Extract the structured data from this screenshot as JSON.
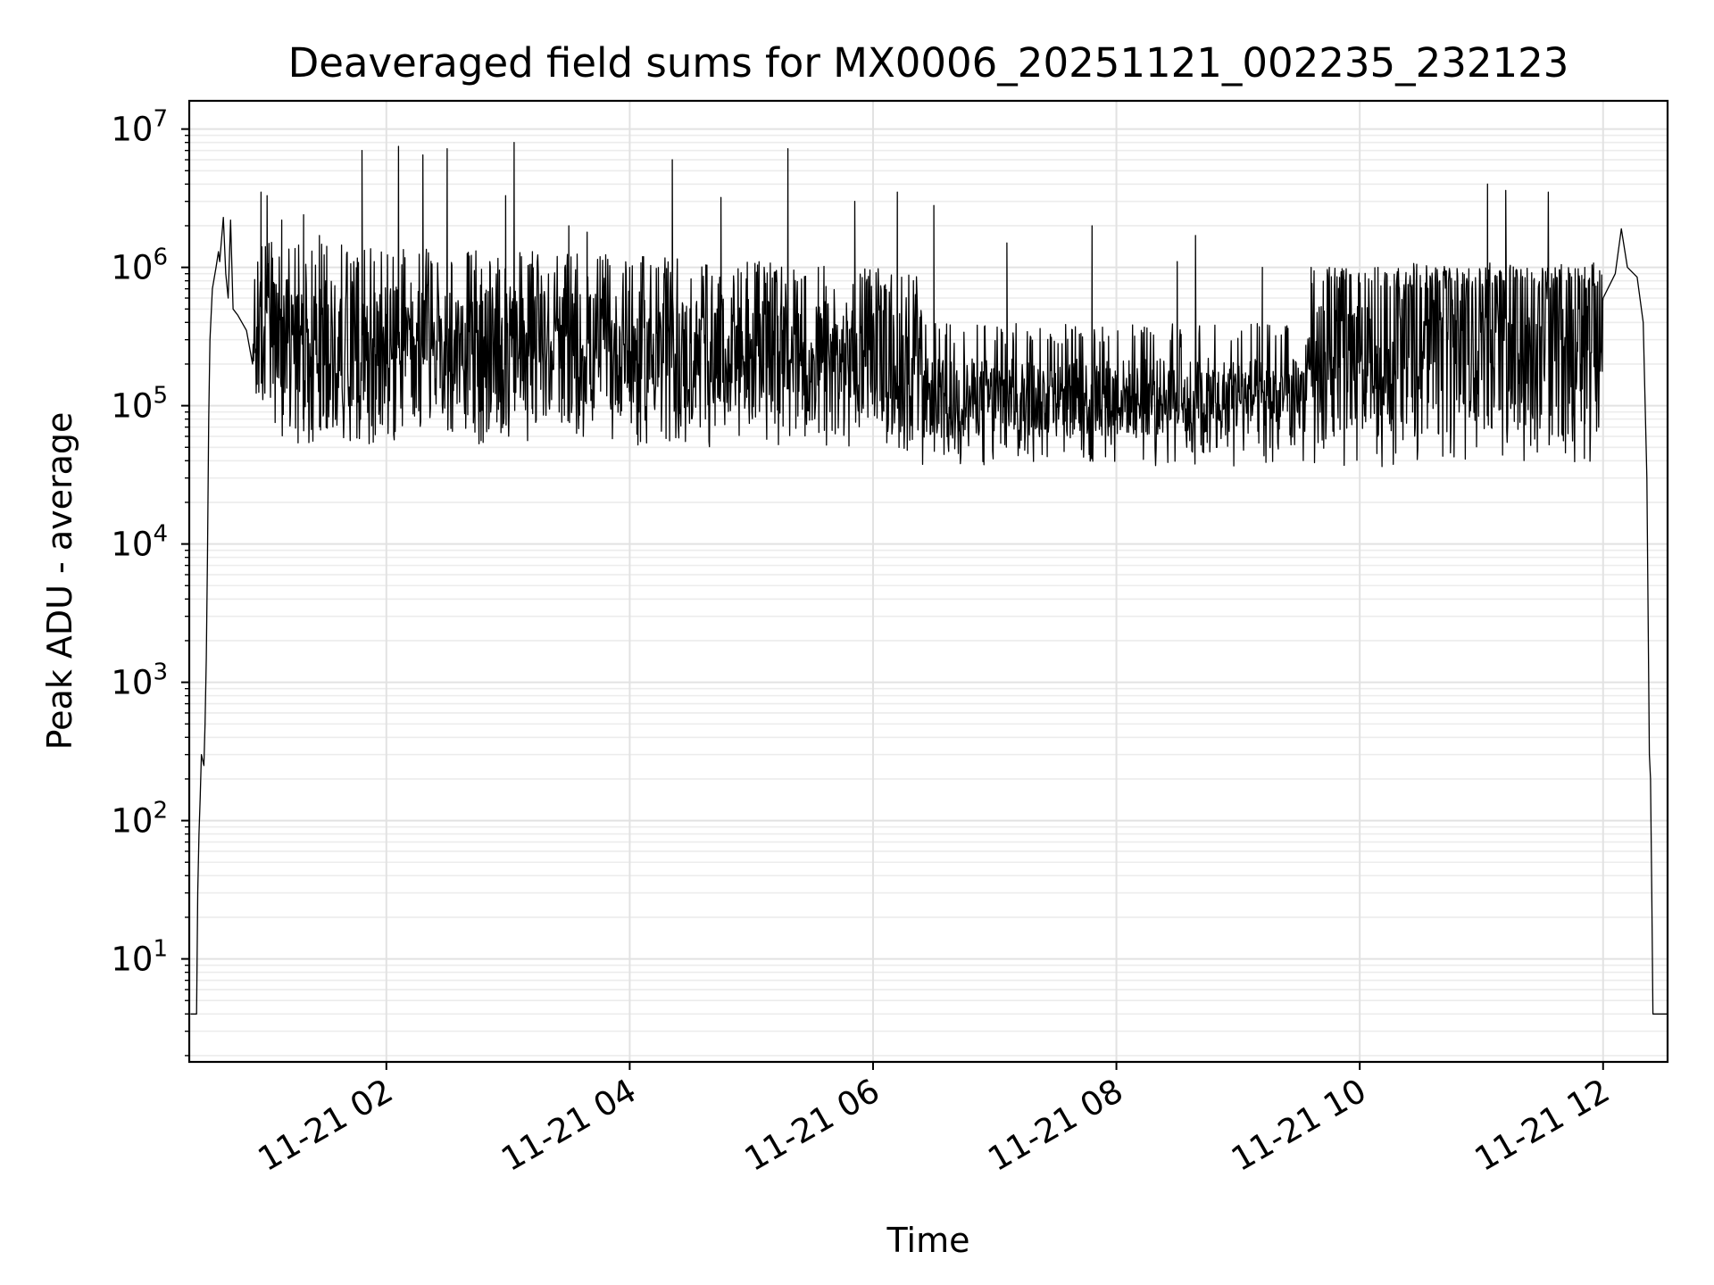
{
  "chart_data": {
    "type": "line",
    "title": "Deaveraged field sums for MX0006_20251121_002235_232123",
    "xlabel": "Time",
    "ylabel": "Peak ADU - average",
    "y_scale": "log",
    "ylim": [
      1.8,
      16000000
    ],
    "x_unit": "hours since 11-21 00:00",
    "xlim": [
      0.38,
      12.53
    ],
    "x_ticks": [
      {
        "value": 2,
        "label": "11-21 02"
      },
      {
        "value": 4,
        "label": "11-21 04"
      },
      {
        "value": 6,
        "label": "11-21 06"
      },
      {
        "value": 8,
        "label": "11-21 08"
      },
      {
        "value": 10,
        "label": "11-21 10"
      },
      {
        "value": 12,
        "label": "11-21 12"
      }
    ],
    "y_ticks": [
      {
        "value": 10,
        "base": "10",
        "exp": "1"
      },
      {
        "value": 100,
        "base": "10",
        "exp": "2"
      },
      {
        "value": 1000,
        "base": "10",
        "exp": "3"
      },
      {
        "value": 10000,
        "base": "10",
        "exp": "4"
      },
      {
        "value": 100000,
        "base": "10",
        "exp": "5"
      },
      {
        "value": 1000000,
        "base": "10",
        "exp": "6"
      },
      {
        "value": 10000000,
        "base": "10",
        "exp": "7"
      }
    ],
    "grid": true,
    "series": [
      {
        "name": "deaveraged field sum",
        "color": "#000000",
        "envelope_note": "dense noisy signal; values approximated",
        "points": [
          [
            0.39,
            4
          ],
          [
            0.42,
            4
          ],
          [
            0.44,
            4
          ],
          [
            0.45,
            30
          ],
          [
            0.46,
            80
          ],
          [
            0.47,
            150
          ],
          [
            0.48,
            300
          ],
          [
            0.5,
            250
          ],
          [
            0.51,
            500
          ],
          [
            0.52,
            1500
          ],
          [
            0.53,
            8000
          ],
          [
            0.54,
            80000
          ],
          [
            0.55,
            300000
          ],
          [
            0.57,
            700000
          ],
          [
            0.6,
            1000000
          ],
          [
            0.62,
            1300000
          ],
          [
            0.63,
            1100000
          ],
          [
            0.66,
            2300000
          ],
          [
            0.68,
            900000
          ],
          [
            0.7,
            600000
          ],
          [
            0.72,
            2200000
          ],
          [
            0.74,
            500000
          ],
          [
            0.78,
            450000
          ],
          [
            0.85,
            350000
          ],
          [
            0.9,
            200000
          ],
          [
            0.97,
            3500000
          ],
          [
            1.02,
            3300000
          ],
          [
            1.14,
            2200000
          ],
          [
            1.32,
            2400000
          ],
          [
            1.45,
            1700000
          ],
          [
            1.8,
            7000000
          ],
          [
            1.9,
            1100000
          ],
          [
            2.1,
            7500000
          ],
          [
            2.3,
            6500000
          ],
          [
            2.5,
            7200000
          ],
          [
            2.85,
            1100000
          ],
          [
            2.98,
            3300000
          ],
          [
            3.05,
            8000000
          ],
          [
            3.2,
            1300000
          ],
          [
            3.5,
            2000000
          ],
          [
            3.65,
            1800000
          ],
          [
            4.0,
            1000000
          ],
          [
            4.35,
            6000000
          ],
          [
            4.75,
            3200000
          ],
          [
            5.3,
            7200000
          ],
          [
            5.55,
            1000000
          ],
          [
            5.85,
            3000000
          ],
          [
            6.2,
            3500000
          ],
          [
            6.5,
            2800000
          ],
          [
            7.1,
            1500000
          ],
          [
            7.8,
            2000000
          ],
          [
            8.5,
            1100000
          ],
          [
            8.65,
            1700000
          ],
          [
            9.2,
            1000000
          ],
          [
            9.6,
            1000000
          ],
          [
            10.15,
            1000000
          ],
          [
            10.55,
            1000000
          ],
          [
            11.05,
            4000000
          ],
          [
            11.2,
            3600000
          ],
          [
            11.55,
            3500000
          ],
          [
            11.85,
            1000000
          ],
          [
            12.0,
            600000
          ],
          [
            12.1,
            900000
          ],
          [
            12.15,
            1900000
          ],
          [
            12.2,
            1000000
          ],
          [
            12.28,
            850000
          ],
          [
            12.33,
            400000
          ],
          [
            12.36,
            30000
          ],
          [
            12.38,
            300
          ],
          [
            12.39,
            200
          ],
          [
            12.4,
            30
          ],
          [
            12.41,
            4
          ],
          [
            12.53,
            4
          ]
        ]
      }
    ]
  }
}
